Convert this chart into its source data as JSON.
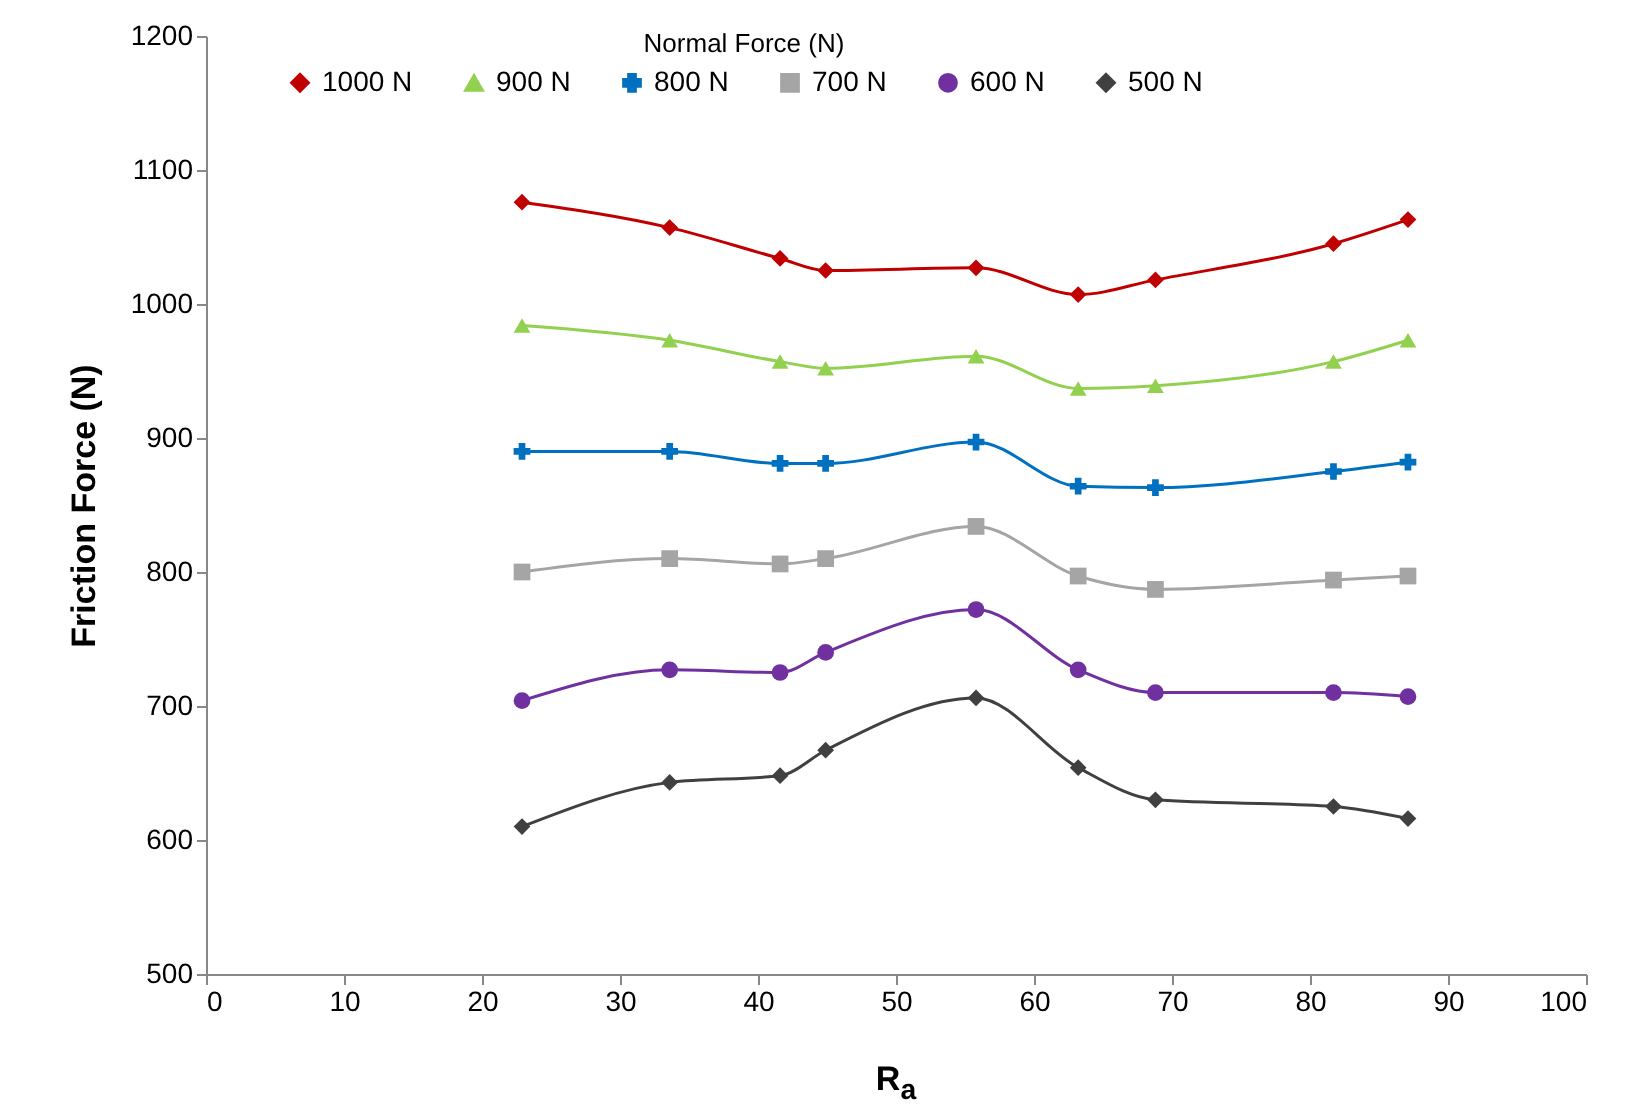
{
  "chart_data": {
    "type": "line",
    "xlabel": "R$_{a}$",
    "ylabel": "Friction Force (N)",
    "legend_title": "Normal Force (N)",
    "legend": "top",
    "grid": false,
    "x": [
      22.9,
      33.6,
      41.6,
      44.9,
      55.8,
      63.2,
      68.8,
      81.7,
      87.1
    ],
    "xlim": [
      0,
      100
    ],
    "xticks": [
      0,
      10,
      20,
      30,
      40,
      50,
      60,
      70,
      80,
      90,
      100
    ],
    "ylim": [
      500,
      1200
    ],
    "yticks": [
      500,
      600,
      700,
      800,
      900,
      1000,
      1100,
      1200
    ],
    "series": [
      {
        "name": "1000 N",
        "color": "#c00000",
        "marker": "diamond",
        "values": [
          1076,
          1057,
          1034,
          1025,
          1027,
          1007,
          1018,
          1045,
          1063
        ]
      },
      {
        "name": "900 N",
        "color": "#92d050",
        "marker": "triangle",
        "values": [
          984,
          973,
          957,
          952,
          961,
          937,
          939,
          957,
          973
        ]
      },
      {
        "name": "800 N",
        "color": "#0070c0",
        "marker": "cross",
        "values": [
          890,
          890,
          881,
          881,
          897,
          864,
          863,
          875,
          882
        ]
      },
      {
        "name": "700 N",
        "color": "#a5a5a5",
        "marker": "square",
        "values": [
          800,
          810,
          806,
          810,
          834,
          797,
          787,
          794,
          797
        ]
      },
      {
        "name": "600 N",
        "color": "#7030a0",
        "marker": "circle",
        "values": [
          704,
          727,
          725,
          740,
          772,
          727,
          710,
          710,
          707
        ]
      },
      {
        "name": "500 N",
        "color": "#404040",
        "marker": "diamond",
        "values": [
          610,
          643,
          648,
          667,
          706,
          654,
          630,
          625,
          616
        ]
      }
    ]
  }
}
